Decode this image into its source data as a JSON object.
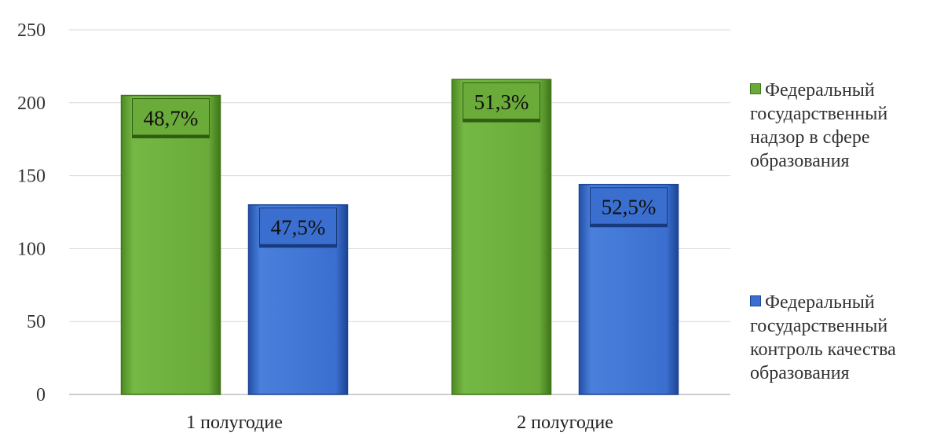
{
  "chart_data": {
    "type": "bar",
    "categories": [
      "1 полугодие",
      "2 полугодие"
    ],
    "series": [
      {
        "name": "Федеральный государственный надзор в сфере образования",
        "values": [
          205,
          216
        ],
        "labels": [
          "48,7%",
          "51,3%"
        ],
        "color": "#6aaa3a"
      },
      {
        "name": "Федеральный государственный контроль качества образования",
        "values": [
          130,
          144
        ],
        "labels": [
          "47,5%",
          "52,5%"
        ],
        "color": "#3a6fd1"
      }
    ],
    "ylim": [
      0,
      250
    ],
    "yticks": [
      0,
      50,
      100,
      150,
      200,
      250
    ],
    "grid": true,
    "legend_position": "right"
  }
}
